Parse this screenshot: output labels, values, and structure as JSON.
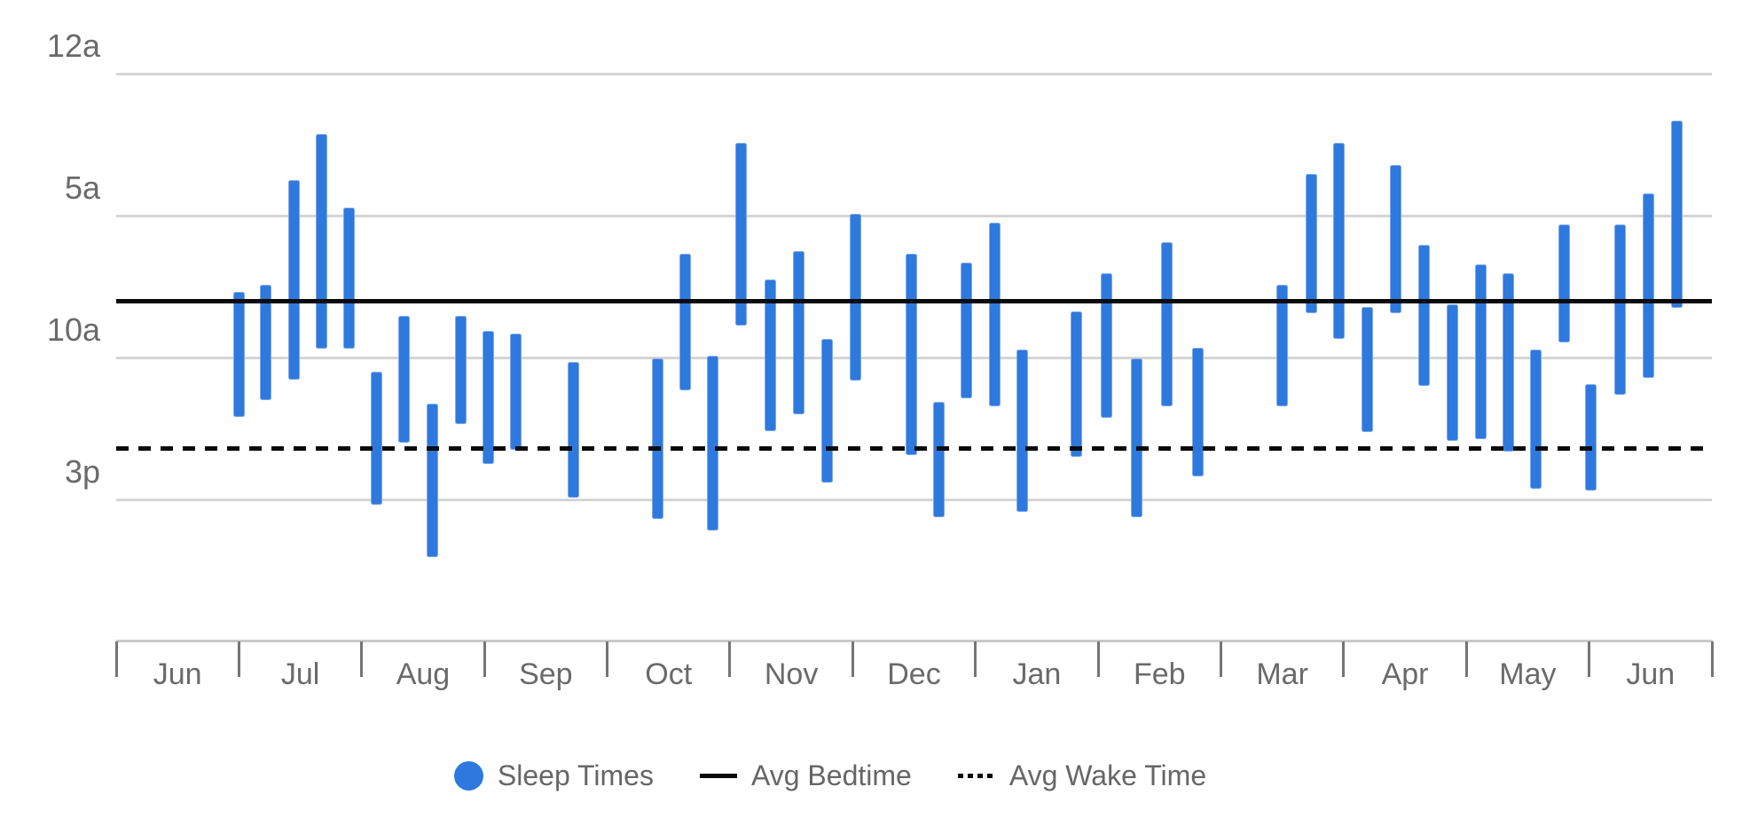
{
  "chart_data": {
    "type": "bar",
    "subtype": "floating-range-bars (weekly sleep periods)",
    "title": "",
    "x_axis": {
      "categories": [
        "Jun",
        "Jul",
        "Aug",
        "Sep",
        "Oct",
        "Nov",
        "Dec",
        "Jan",
        "Feb",
        "Mar",
        "Apr",
        "May",
        "Jun"
      ]
    },
    "y_axis": {
      "unit": "time-of-day",
      "ticks": [
        {
          "label": "12a",
          "hour": 0
        },
        {
          "label": "5a",
          "hour": 5
        },
        {
          "label": "10a",
          "hour": 10
        },
        {
          "label": "3p",
          "hour": 15
        }
      ],
      "range_hours": [
        0,
        20
      ]
    },
    "series": {
      "sleep_times": {
        "name": "Sleep Times",
        "point_format": [
          "x_center_px",
          "start_hour_after_midnight",
          "end_hour_after_midnight"
        ],
        "points": [
          [
            269.5,
            7.69,
            12.09
          ],
          [
            299.5,
            7.44,
            11.5
          ],
          [
            331,
            3.75,
            10.78
          ],
          [
            362,
            2.13,
            9.69
          ],
          [
            393,
            4.72,
            9.69
          ],
          [
            424.5,
            10.5,
            15.19
          ],
          [
            455,
            8.53,
            13.0
          ],
          [
            487,
            11.63,
            17.03
          ],
          [
            519,
            8.53,
            12.34
          ],
          [
            550,
            9.06,
            13.75
          ],
          [
            581,
            9.16,
            13.25
          ],
          [
            646,
            10.16,
            14.94
          ],
          [
            741,
            10.03,
            15.69
          ],
          [
            772,
            6.34,
            11.16
          ],
          [
            803,
            9.94,
            16.09
          ],
          [
            835,
            2.44,
            8.88
          ],
          [
            868,
            7.25,
            12.59
          ],
          [
            900,
            6.25,
            12.0
          ],
          [
            932,
            9.34,
            14.41
          ],
          [
            964.5,
            4.94,
            10.81
          ],
          [
            1027,
            6.34,
            13.44
          ],
          [
            1058,
            11.56,
            15.63
          ],
          [
            1089,
            6.66,
            11.44
          ],
          [
            1121,
            5.25,
            11.72
          ],
          [
            1152,
            9.72,
            15.44
          ],
          [
            1213.5,
            8.38,
            13.5
          ],
          [
            1247,
            7.03,
            12.13
          ],
          [
            1281,
            10.03,
            15.63
          ],
          [
            1315,
            5.94,
            11.72
          ],
          [
            1350,
            9.66,
            14.19
          ],
          [
            1445.5,
            7.44,
            11.72
          ],
          [
            1478,
            3.53,
            8.44
          ],
          [
            1509.5,
            2.44,
            9.34
          ],
          [
            1541,
            8.22,
            12.63
          ],
          [
            1573,
            3.22,
            8.44
          ],
          [
            1605,
            6.03,
            11.0
          ],
          [
            1637.5,
            8.13,
            12.94
          ],
          [
            1669.5,
            6.72,
            12.88
          ],
          [
            1700.5,
            7.03,
            13.31
          ],
          [
            1731.5,
            9.72,
            14.63
          ],
          [
            1763,
            5.31,
            9.47
          ],
          [
            1793.5,
            10.94,
            14.69
          ],
          [
            1826.5,
            5.31,
            11.31
          ],
          [
            1858.5,
            4.22,
            10.72
          ],
          [
            1890,
            1.66,
            8.25
          ]
        ]
      },
      "avg_bedtime": {
        "name": "Avg Bedtime",
        "hour": 8.0,
        "time_label": "8:00a",
        "style": "solid"
      },
      "avg_wake_time": {
        "name": "Avg Wake Time",
        "hour": 13.2,
        "time_label": "1:10p",
        "style": "dotted"
      }
    },
    "legend": [
      {
        "label": "Sleep Times",
        "swatch": "blue-circle"
      },
      {
        "label": "Avg Bedtime",
        "swatch": "solid-black-line"
      },
      {
        "label": "Avg Wake Time",
        "swatch": "dotted-black-line"
      }
    ],
    "layout_hints": {
      "grid": "horizontal-only",
      "legend_position": "bottom-center"
    },
    "colors": {
      "bar_fill": "#2e79dd",
      "bar_edge": "#7fa9e8",
      "avg_lines": "#0a0a0a",
      "gridline": "#d5d5d5",
      "axis_line": "#c9c9c9",
      "axis_tick": "#757575",
      "label_text": "#6a6a6a"
    }
  }
}
